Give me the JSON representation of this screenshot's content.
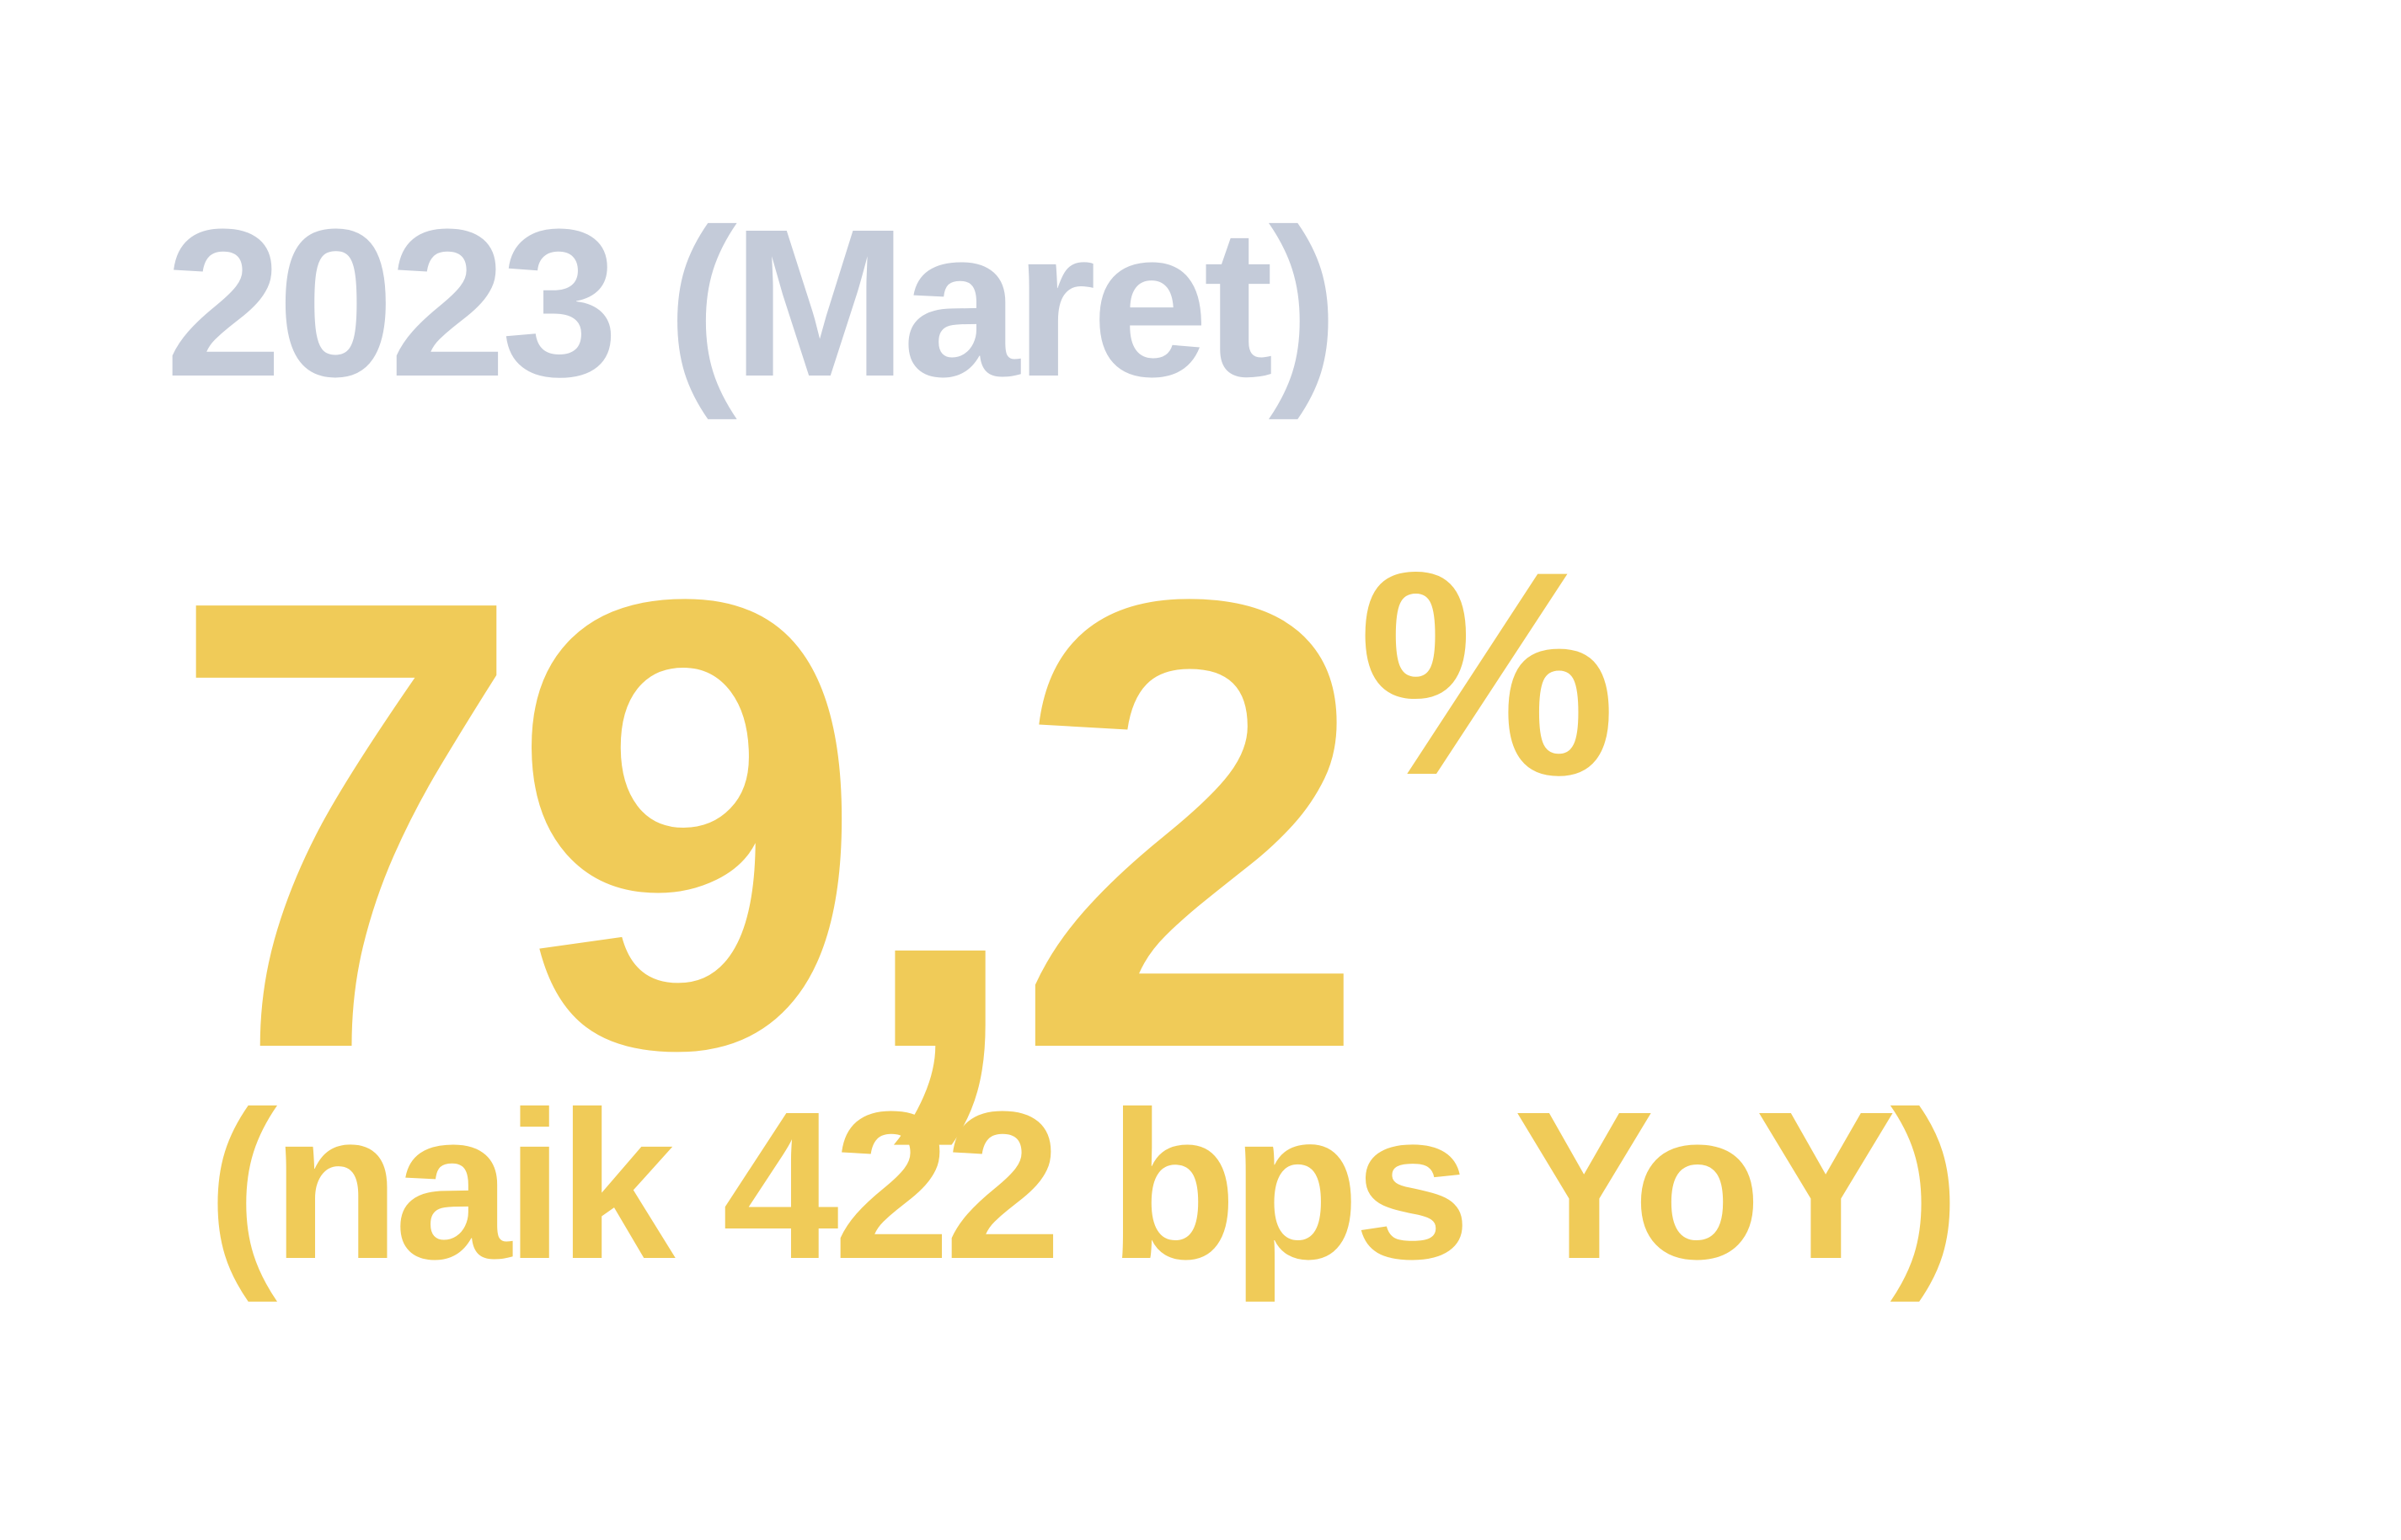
{
  "stat": {
    "period": "2023 (Maret)",
    "value": "79,2",
    "unit": "%",
    "change": "(naik 422 bps YoY)"
  },
  "colors": {
    "period_text": "#c4cbd9",
    "accent": "#f0cb58",
    "background": "#ffffff"
  }
}
